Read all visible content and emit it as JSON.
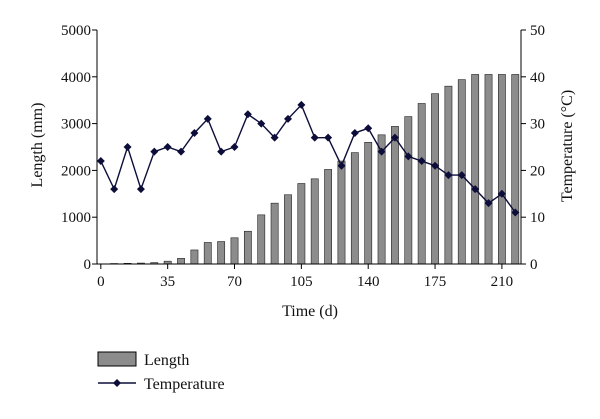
{
  "chart_data": {
    "type": "bar+line",
    "x_label": "Time (d)",
    "y_left_label": "Length (mm)",
    "y_right_label": "Temperature (°C)",
    "x_ticks": [
      0,
      35,
      70,
      105,
      140,
      175,
      210
    ],
    "x_range": [
      -2,
      220
    ],
    "y_left_ticks": [
      0,
      1000,
      2000,
      3000,
      4000,
      5000
    ],
    "y_left_range": [
      0,
      5000
    ],
    "y_right_ticks": [
      0,
      10,
      20,
      30,
      40,
      50
    ],
    "y_right_range": [
      0,
      50
    ],
    "grid": false,
    "legend_position": "bottom-left",
    "series": [
      {
        "name": "Length",
        "type": "bar",
        "axis": "left",
        "color": "#8c8c8c",
        "x": [
          7,
          14,
          21,
          28,
          35,
          42,
          49,
          56,
          63,
          70,
          77,
          84,
          91,
          98,
          105,
          112,
          119,
          126,
          133,
          140,
          147,
          154,
          161,
          168,
          175,
          182,
          189,
          196,
          203,
          210,
          217
        ],
        "values": [
          10,
          15,
          20,
          30,
          60,
          120,
          300,
          460,
          480,
          560,
          700,
          1050,
          1300,
          1480,
          1720,
          1820,
          2020,
          2200,
          2380,
          2600,
          2760,
          2940,
          3150,
          3430,
          3640,
          3800,
          3940,
          4050,
          4050,
          4050,
          4050
        ]
      },
      {
        "name": "Temperature",
        "type": "line",
        "axis": "right",
        "color": "#0d0d3a",
        "x": [
          0,
          7,
          14,
          21,
          28,
          35,
          42,
          49,
          56,
          63,
          70,
          77,
          84,
          91,
          98,
          105,
          112,
          119,
          126,
          133,
          140,
          147,
          154,
          161,
          168,
          175,
          182,
          189,
          196,
          203,
          210,
          217
        ],
        "values": [
          22,
          16,
          25,
          16,
          24,
          25,
          24,
          28,
          31,
          24,
          25,
          32,
          30,
          27,
          31,
          34,
          27,
          27,
          21,
          28,
          29,
          24,
          27,
          23,
          22,
          21,
          19,
          19,
          16,
          13,
          15,
          11
        ]
      }
    ]
  }
}
